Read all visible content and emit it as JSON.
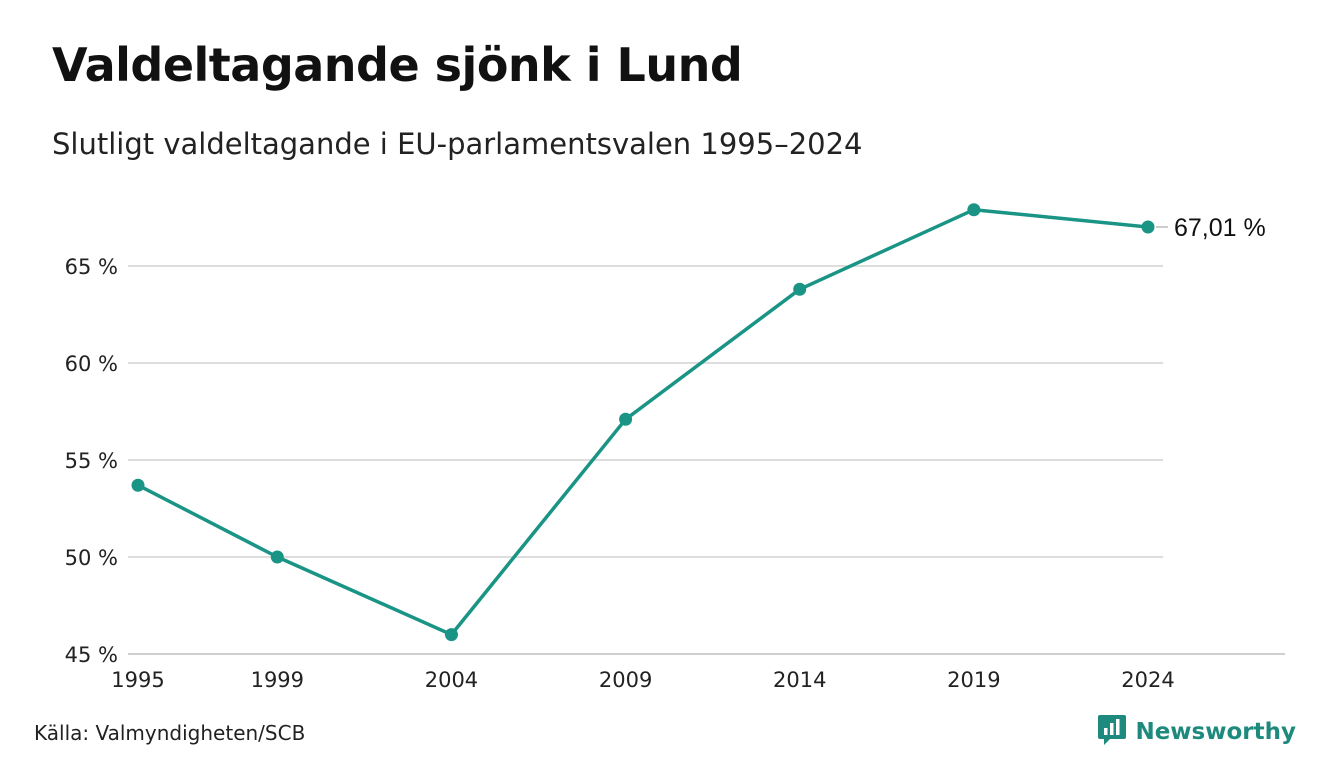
{
  "header": {
    "title": "Valdeltagande sjönk i Lund",
    "subtitle": "Slutligt valdeltagande i EU-parlamentsvalen 1995–2024"
  },
  "footer": {
    "source": "Källa: Valmyndigheten/SCB",
    "brand": "Newsworthy",
    "brand_icon": "bar-chart-speech-bubble-icon"
  },
  "colors": {
    "line": "#1a9485",
    "grid": "#dddddd",
    "brand": "#1e8a7d"
  },
  "chart_data": {
    "type": "line",
    "title": "Valdeltagande sjönk i Lund",
    "subtitle": "Slutligt valdeltagande i EU-parlamentsvalen 1995–2024",
    "x": [
      1995,
      1999,
      2004,
      2009,
      2014,
      2019,
      2024
    ],
    "series": [
      {
        "values": [
          53.7,
          50.0,
          46.0,
          57.1,
          63.8,
          67.9,
          67.01
        ]
      }
    ],
    "end_label": "67,01 %",
    "x_ticks": [
      "1995",
      "1999",
      "2004",
      "2009",
      "2014",
      "2019",
      "2024"
    ],
    "y_ticks": [
      45,
      50,
      55,
      60,
      65
    ],
    "y_tick_labels": [
      "45 %",
      "50 %",
      "55 %",
      "60 %",
      "65 %"
    ],
    "ylim": [
      45,
      69
    ],
    "grid": true,
    "legend": "none"
  }
}
